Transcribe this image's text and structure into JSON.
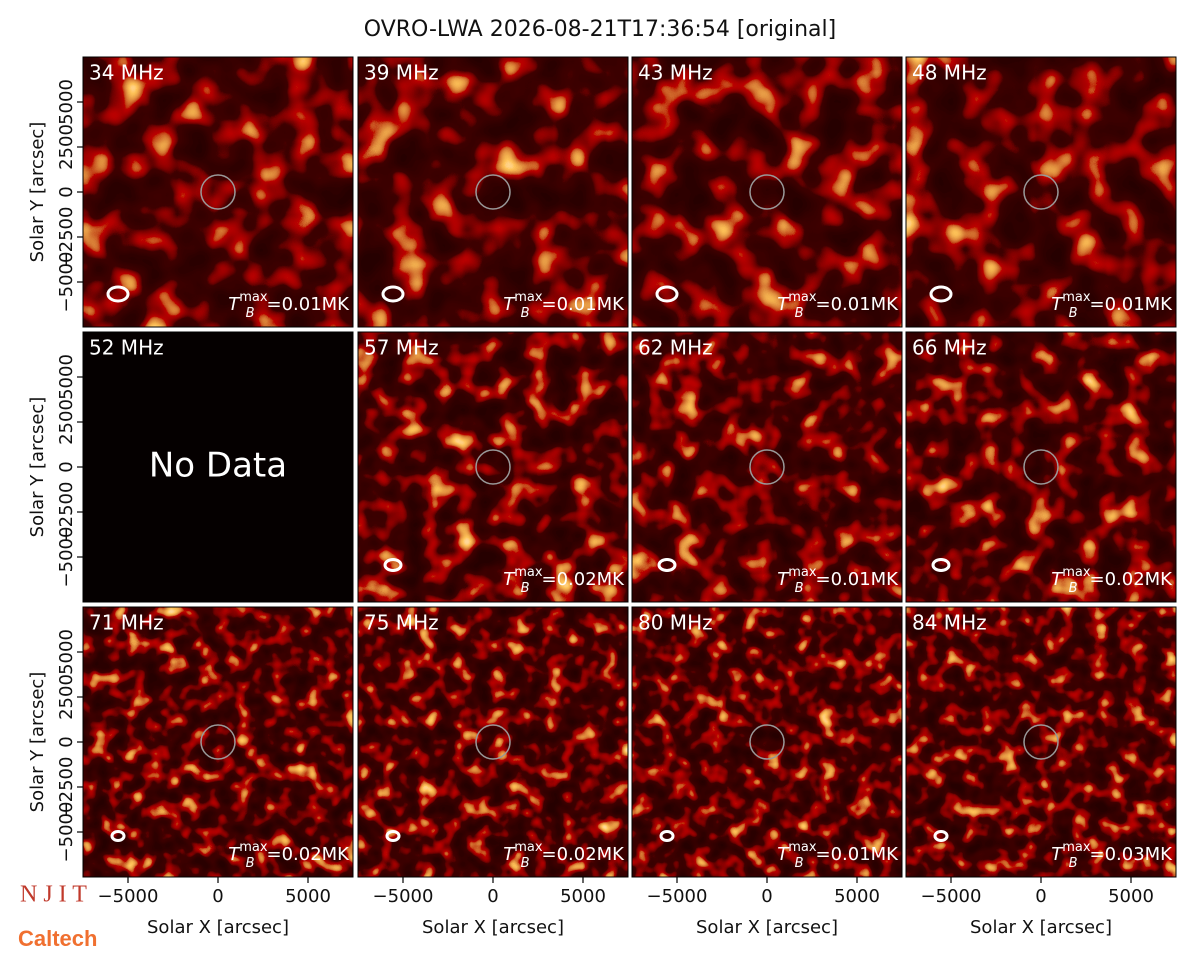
{
  "chart_data": {
    "type": "image_grid",
    "title": "OVRO-LWA 2026-08-21T17:36:54 [original]",
    "x_label": "Solar X [arcsec]",
    "y_label": "Solar Y [arcsec]",
    "xlim": [
      -7500,
      7500
    ],
    "ylim": [
      -7500,
      7500
    ],
    "xticks": [
      {
        "value": -5000,
        "label": "−5000"
      },
      0,
      5000
    ],
    "yticks": [
      {
        "value": -5000,
        "label": "−5000"
      },
      {
        "value": -2500,
        "label": "−2500"
      },
      0,
      2500,
      5000
    ],
    "tb_symbol": {
      "base": "T",
      "subscript": "B",
      "superscript": "max",
      "equals": "="
    },
    "panels": [
      {
        "label": "34 MHz",
        "tmax": "0.01MK"
      },
      {
        "label": "39 MHz",
        "tmax": "0.01MK"
      },
      {
        "label": "43 MHz",
        "tmax": "0.01MK"
      },
      {
        "label": "48 MHz",
        "tmax": "0.01MK"
      },
      {
        "label": "52 MHz",
        "note": "No Data"
      },
      {
        "label": "57 MHz",
        "tmax": "0.02MK"
      },
      {
        "label": "62 MHz",
        "tmax": "0.01MK"
      },
      {
        "label": "66 MHz",
        "tmax": "0.02MK"
      },
      {
        "label": "71 MHz",
        "tmax": "0.02MK"
      },
      {
        "label": "75 MHz",
        "tmax": "0.02MK"
      },
      {
        "label": "80 MHz",
        "tmax": "0.01MK"
      },
      {
        "label": "84 MHz",
        "tmax": "0.03MK"
      }
    ],
    "logos": [
      "N J I T",
      "Caltech"
    ]
  }
}
